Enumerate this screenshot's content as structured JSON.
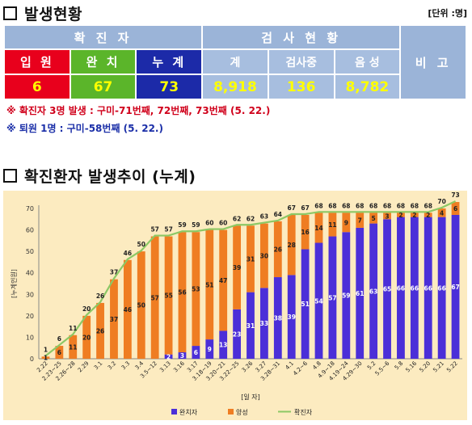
{
  "header": {
    "title": "발생현황",
    "unit": "[단위 :명]"
  },
  "table": {
    "confirmed_header": "확 진 자",
    "test_header": "검 사 현 황",
    "remark_header": "비 고",
    "columns": [
      {
        "label": "입 원",
        "value": "6"
      },
      {
        "label": "완 치",
        "value": "67"
      },
      {
        "label": "누 계",
        "value": "73"
      },
      {
        "label": "계",
        "value": "8,918"
      },
      {
        "label": "검사중",
        "value": "136"
      },
      {
        "label": "음 성",
        "value": "8,782"
      }
    ],
    "remark_value": ""
  },
  "notes": [
    "※ 확진자 3명 발생 : 구미-71번째, 72번째, 73번째 (5. 22.)",
    "※ 퇴원 1명 : 구미-58번째 (5. 22.)"
  ],
  "chart_title": "확진환자 발생추이 (누계)",
  "colors": {
    "header_bg": "#9bb4d8",
    "hospitalized_bg": "#e8001c",
    "recovered_bg": "#5bb52a",
    "total_bg": "#1c2aa8",
    "value_yellow": "#ffff00",
    "recovered_bar": "#4b2fd8",
    "hospitalized_bar": "#ef7d22",
    "total_line": "#8cc865",
    "chart_bg": "#fcebc0"
  },
  "chart_data": {
    "type": "bar",
    "stacked": true,
    "categories": [
      "2.22",
      "2.23~25",
      "2.26~28",
      "2.29",
      "3.1",
      "3.2",
      "3.3",
      "3.4",
      "3.5~12",
      "3.13",
      "3.16",
      "3.17",
      "3.18~19",
      "3.20~21",
      "3.22~25",
      "3.26",
      "3.27",
      "3.28~31",
      "4.1",
      "4.2~6",
      "4.8",
      "4.9~18",
      "4.19~24",
      "4.29~30",
      "5.2",
      "5.5~6",
      "5.8",
      "5.16",
      "5.20",
      "5.21",
      "5.22"
    ],
    "series": [
      {
        "name": "완치자",
        "type": "bar",
        "values": [
          0,
          0,
          0,
          0,
          0,
          0,
          0,
          0,
          0,
          2,
          3,
          6,
          9,
          13,
          23,
          31,
          33,
          38,
          39,
          51,
          54,
          57,
          59,
          61,
          63,
          65,
          66,
          66,
          66,
          66,
          67
        ]
      },
      {
        "name": "양성",
        "type": "bar",
        "values": [
          1,
          6,
          11,
          20,
          26,
          37,
          46,
          50,
          57,
          55,
          56,
          53,
          51,
          47,
          39,
          31,
          30,
          26,
          28,
          16,
          14,
          11,
          9,
          7,
          5,
          3,
          2,
          2,
          2,
          4,
          6
        ]
      },
      {
        "name": "확진자",
        "type": "line",
        "values": [
          1,
          6,
          11,
          20,
          26,
          37,
          46,
          50,
          57,
          57,
          59,
          59,
          60,
          60,
          62,
          62,
          63,
          64,
          67,
          67,
          68,
          68,
          68,
          68,
          68,
          68,
          68,
          68,
          68,
          70,
          73
        ]
      }
    ],
    "xlabel": "[일 자]",
    "ylabel": "[누계인원]",
    "ylim": [
      0,
      70
    ],
    "yticks": [
      0,
      10,
      20,
      30,
      40,
      50,
      60,
      70
    ],
    "grid": false,
    "legend": "bottom"
  }
}
